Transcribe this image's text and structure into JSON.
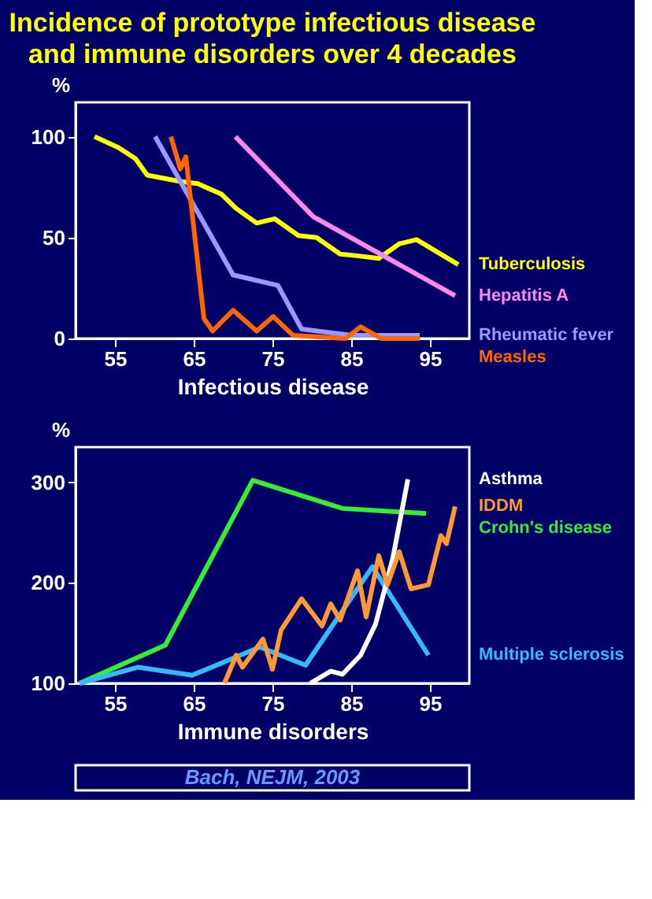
{
  "chart_data": [
    {
      "type": "line",
      "title": "Incidence of prototype infectious disease and immune disorders over 4 decades",
      "xlabel": "Infectious disease",
      "ylabel": "%",
      "xlim": [
        50,
        100
      ],
      "xticks": [
        55,
        65,
        75,
        85,
        95
      ],
      "ylim": [
        0,
        117
      ],
      "yticks": [
        0,
        50,
        100
      ],
      "grid": false,
      "legend": false,
      "marker": "none",
      "line_style": "solid",
      "series": [
        {
          "name": "Tuberculosis",
          "color": "#ffff00",
          "x": [
            52.4,
            55.4,
            57.6,
            59.1,
            63.3,
            65.5,
            68.5,
            70.4,
            73.0,
            75.3,
            78.3,
            80.6,
            83.6,
            85.5,
            88.5,
            91.1,
            93.3,
            98.6
          ],
          "values": [
            100,
            94.7,
            89.1,
            80.9,
            77.8,
            76.7,
            71.6,
            64.4,
            57.2,
            59.3,
            51.0,
            50.0,
            41.8,
            41.1,
            39.7,
            46.9,
            49.0,
            36.6
          ]
        },
        {
          "name": "Rheumatic fever",
          "color": "#9999ff",
          "x": [
            60.1,
            70.0,
            75.7,
            78.7,
            85.1,
            93.7
          ],
          "values": [
            100,
            31.5,
            26.3,
            4.7,
            1.6,
            1.6
          ]
        },
        {
          "name": "Measles",
          "color": "#ff6600",
          "x": [
            62.1,
            63.3,
            64.0,
            66.3,
            67.4,
            70.0,
            73.0,
            75.1,
            77.6,
            84.3,
            86.2,
            88.8,
            93.7
          ],
          "values": [
            100,
            84,
            90,
            9.9,
            3.7,
            14,
            3.7,
            10.9,
            1.6,
            0,
            5.8,
            0,
            0
          ]
        },
        {
          "name": "Hepatitis A",
          "color": "#ff88ee",
          "x": [
            70.3,
            80.2,
            98.2
          ],
          "values": [
            100,
            60.3,
            21.2
          ]
        }
      ]
    },
    {
      "type": "line",
      "xlabel": "Immune disorders",
      "ylabel": "%",
      "xlim": [
        50,
        100
      ],
      "xticks": [
        55,
        65,
        75,
        85,
        95
      ],
      "ylim": [
        100,
        335
      ],
      "yticks": [
        100,
        200,
        300
      ],
      "grid": false,
      "legend": false,
      "marker": "none",
      "line_style": "solid",
      "annotations": [
        "Bach, NEJM, 2003"
      ],
      "series": [
        {
          "name": "Crohn's disease",
          "color": "#33ee33",
          "x": [
            50.5,
            61.4,
            72.5,
            83.9,
            94.5
          ],
          "values": [
            100,
            138,
            302,
            274,
            269
          ]
        },
        {
          "name": "Multiple sclerosis",
          "color": "#33bbff",
          "x": [
            50.5,
            57.9,
            64.8,
            73.4,
            79.2,
            87.7,
            94.8
          ],
          "values": [
            100,
            116,
            108,
            136,
            118,
            216,
            128
          ]
        },
        {
          "name": "Asthma",
          "color": "#ffffff",
          "x": [
            79.8,
            82.4,
            83.9,
            86.2,
            88.1,
            90.3,
            92.2
          ],
          "values": [
            100,
            112,
            109,
            128,
            159,
            225,
            303
          ]
        },
        {
          "name": "IDDM",
          "color": "#ff9933",
          "x": [
            68.9,
            70.4,
            71.2,
            73.8,
            75.0,
            76.1,
            78.7,
            81.3,
            82.4,
            83.6,
            85.8,
            86.9,
            88.5,
            89.6,
            91.1,
            92.6,
            94.8,
            96.4,
            97.1,
            98.2
          ],
          "values": [
            100,
            128,
            116,
            144,
            114,
            153,
            184,
            157,
            179,
            163,
            212,
            166,
            227,
            198,
            231,
            194,
            198,
            247,
            239,
            276
          ]
        }
      ]
    }
  ]
}
